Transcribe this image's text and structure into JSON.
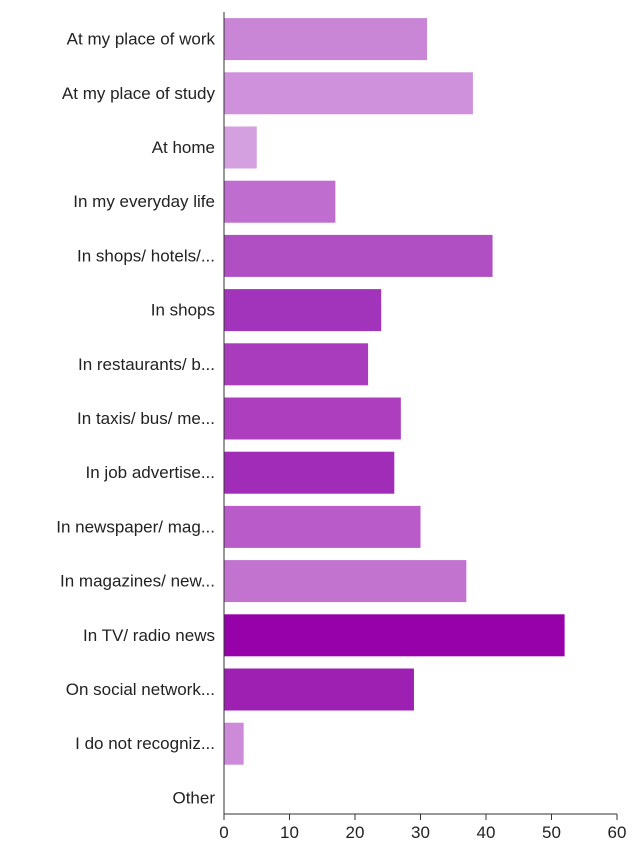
{
  "chart_data": {
    "type": "bar",
    "orientation": "horizontal",
    "categories": [
      "At my place of work",
      "At my place of study",
      "At home",
      "In my everyday life",
      "In shops/ hotels/...",
      "In shops",
      "In restaurants/ b...",
      "In taxis/ bus/ me...",
      "In  job advertise...",
      "In newspaper/ mag...",
      "In magazines/ new...",
      "In TV/ radio news",
      "On social network...",
      "I do not recogniz...",
      "Other"
    ],
    "values": [
      31,
      38,
      5,
      17,
      41,
      24,
      22,
      27,
      26,
      30,
      37,
      52,
      29,
      3,
      0
    ],
    "colors": [
      "#c986d7",
      "#cf90dc",
      "#d5a0e0",
      "#bf6dcf",
      "#b04fc4",
      "#a234bb",
      "#a93bbd",
      "#ad3fbf",
      "#a12cb7",
      "#b95bc8",
      "#c273d0",
      "#9601a9",
      "#9d20b3",
      "#cd8ad8",
      "#cccccc"
    ],
    "xlim": [
      0,
      60
    ],
    "xticks": [
      0,
      10,
      20,
      30,
      40,
      50,
      60
    ],
    "title": "",
    "xlabel": "",
    "ylabel": "",
    "grid": false,
    "legend": "none"
  }
}
